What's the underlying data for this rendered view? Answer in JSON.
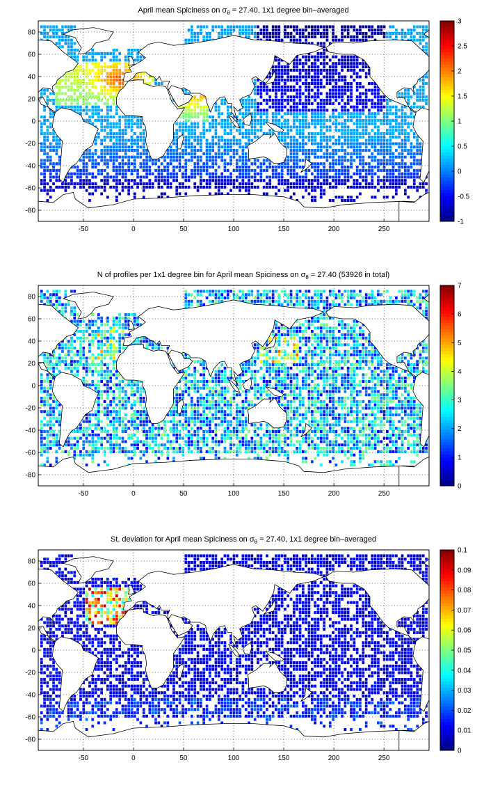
{
  "panels": [
    {
      "title_main": "April mean Spiciness on σ",
      "title_sub": "θ",
      "title_rest": " = 27.40, 1x1 degree bin–averaged",
      "x_ticks": [
        "-50",
        "0",
        "50",
        "100",
        "150",
        "200",
        "250"
      ],
      "y_ticks": [
        "80",
        "60",
        "40",
        "20",
        "0",
        "-20",
        "-40",
        "-60",
        "-80"
      ],
      "colorbar_ticks": [
        "3",
        "2.5",
        "2",
        "1.5",
        "1",
        "0.5",
        "0",
        "-0.5",
        "-1"
      ],
      "field": "spiciness"
    },
    {
      "title_main": "N of profiles per 1x1 degree bin for April mean Spiciness on σ",
      "title_sub": "θ",
      "title_rest": " = 27.40 (53926 in total)",
      "x_ticks": [
        "-50",
        "0",
        "50",
        "100",
        "150",
        "200",
        "250"
      ],
      "y_ticks": [
        "80",
        "60",
        "40",
        "20",
        "0",
        "-20",
        "-40",
        "-60",
        "-80"
      ],
      "colorbar_ticks": [
        "7",
        "6",
        "5",
        "4",
        "3",
        "2",
        "1",
        "0"
      ],
      "field": "count"
    },
    {
      "title_main": "St. deviation for April mean Spiciness on σ",
      "title_sub": "θ",
      "title_rest": " = 27.40, 1x1 degree bin–averaged",
      "x_ticks": [
        "-50",
        "0",
        "50",
        "100",
        "150",
        "200",
        "250"
      ],
      "y_ticks": [
        "80",
        "60",
        "40",
        "20",
        "0",
        "-20",
        "-40",
        "-60",
        "-80"
      ],
      "colorbar_ticks": [
        "0.1",
        "0.09",
        "0.08",
        "0.07",
        "0.06",
        "0.05",
        "0.04",
        "0.03",
        "0.02",
        "0.01",
        "0"
      ],
      "field": "std"
    }
  ],
  "map_extent": {
    "lon_min": -95,
    "lon_max": 295,
    "lat_min": -90,
    "lat_max": 90
  },
  "colormap": "jet"
}
